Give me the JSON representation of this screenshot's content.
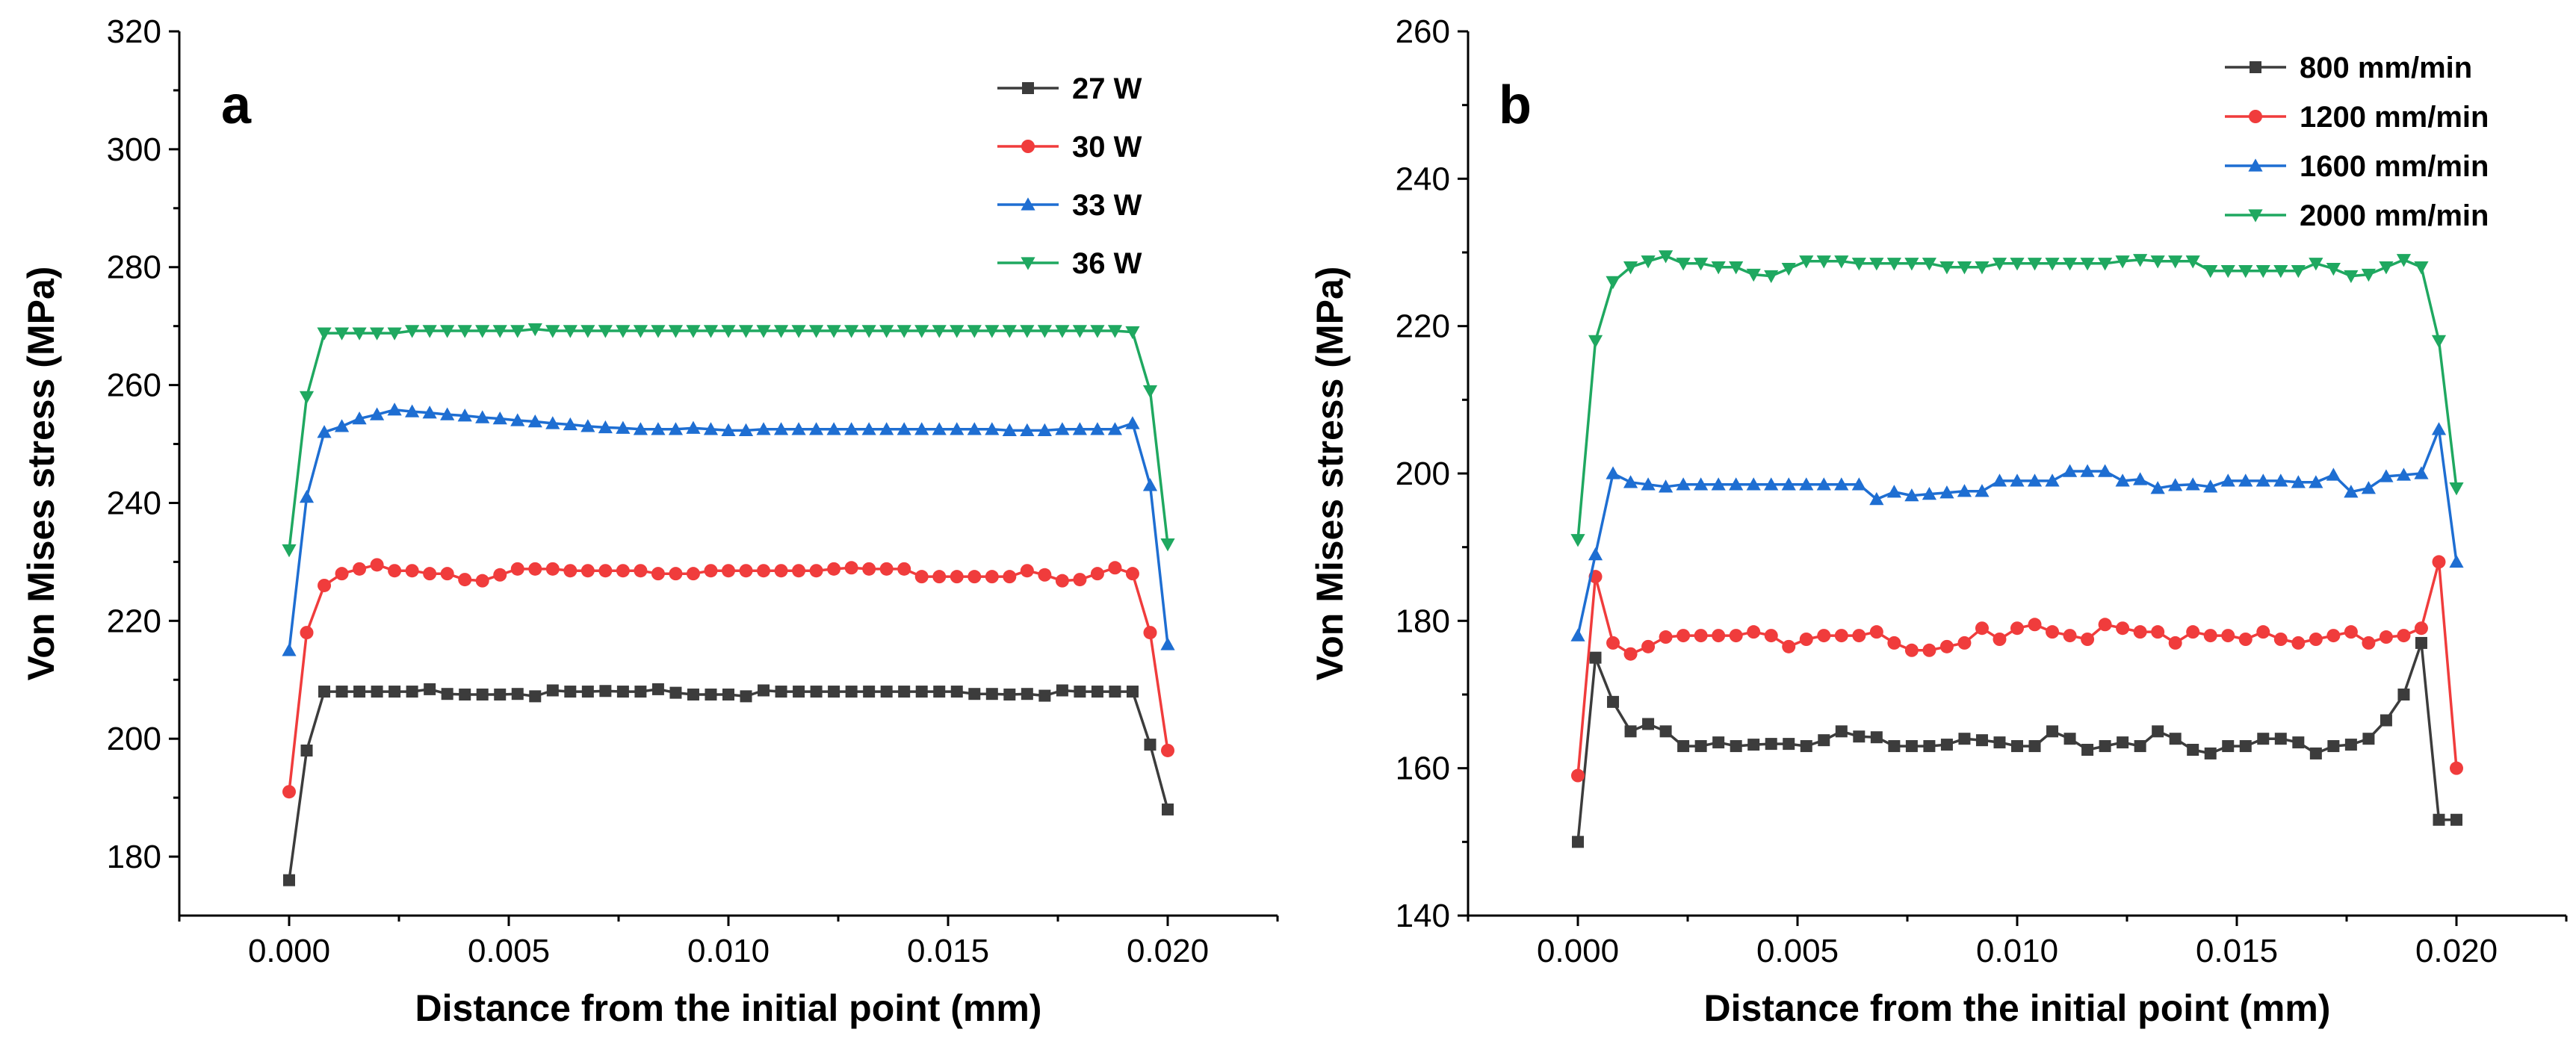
{
  "chart_data": [
    {
      "type": "line",
      "panel_label": "a",
      "xlabel": "Distance from the initial point (mm)",
      "ylabel": "Von Mises stress (MPa)",
      "xlim": [
        -0.0025,
        0.0225
      ],
      "ylim": [
        170,
        320
      ],
      "xticks": [
        "0.000",
        "0.005",
        "0.010",
        "0.015",
        "0.020"
      ],
      "yticks": [
        "180",
        "200",
        "220",
        "240",
        "260",
        "280",
        "300",
        "320"
      ],
      "legend_position": "top-right",
      "series": [
        {
          "name": "27 W",
          "color": "#3c3c3c",
          "marker": "square",
          "x": [
            0,
            0.0004,
            0.0008,
            0.0012,
            0.0016,
            0.002,
            0.0024,
            0.0028,
            0.0032,
            0.0036,
            0.004,
            0.0044,
            0.0048,
            0.0052,
            0.0056,
            0.006,
            0.0064,
            0.0068,
            0.0072,
            0.0076,
            0.008,
            0.0084,
            0.0088,
            0.0092,
            0.0096,
            0.01,
            0.0104,
            0.0108,
            0.0112,
            0.0116,
            0.012,
            0.0124,
            0.0128,
            0.0132,
            0.0136,
            0.014,
            0.0144,
            0.0148,
            0.0152,
            0.0156,
            0.016,
            0.0164,
            0.0168,
            0.0172,
            0.0176,
            0.018,
            0.0184,
            0.0188,
            0.0192,
            0.0196,
            0.02
          ],
          "y": [
            176,
            198,
            208,
            208,
            208,
            208,
            208,
            208,
            208.4,
            207.6,
            207.5,
            207.5,
            207.5,
            207.6,
            207.2,
            208.2,
            208,
            208,
            208.1,
            208,
            208,
            208.4,
            207.8,
            207.5,
            207.5,
            207.5,
            207.2,
            208.2,
            208,
            208,
            208,
            208,
            208,
            208,
            208,
            208,
            208,
            208,
            208,
            207.6,
            207.6,
            207.5,
            207.6,
            207.3,
            208.2,
            208,
            208,
            208,
            208,
            199,
            188
          ]
        },
        {
          "name": "30 W",
          "color": "#f03c3c",
          "marker": "circle",
          "x": [
            0,
            0.0004,
            0.0008,
            0.0012,
            0.0016,
            0.002,
            0.0024,
            0.0028,
            0.0032,
            0.0036,
            0.004,
            0.0044,
            0.0048,
            0.0052,
            0.0056,
            0.006,
            0.0064,
            0.0068,
            0.0072,
            0.0076,
            0.008,
            0.0084,
            0.0088,
            0.0092,
            0.0096,
            0.01,
            0.0104,
            0.0108,
            0.0112,
            0.0116,
            0.012,
            0.0124,
            0.0128,
            0.0132,
            0.0136,
            0.014,
            0.0144,
            0.0148,
            0.0152,
            0.0156,
            0.016,
            0.0164,
            0.0168,
            0.0172,
            0.0176,
            0.018,
            0.0184,
            0.0188,
            0.0192,
            0.0196,
            0.02
          ],
          "y": [
            191,
            218,
            226,
            228,
            228.8,
            229.5,
            228.5,
            228.5,
            228,
            228,
            227,
            226.8,
            227.8,
            228.8,
            228.8,
            228.8,
            228.5,
            228.5,
            228.5,
            228.5,
            228.5,
            228,
            228,
            228,
            228.5,
            228.5,
            228.5,
            228.5,
            228.5,
            228.5,
            228.5,
            228.8,
            229,
            228.8,
            228.8,
            228.8,
            227.5,
            227.5,
            227.5,
            227.5,
            227.5,
            227.5,
            228.5,
            227.8,
            226.8,
            227,
            228,
            229,
            228,
            218,
            198
          ]
        },
        {
          "name": "33 W",
          "color": "#1e6ed2",
          "marker": "triangle-up",
          "x": [
            0,
            0.0004,
            0.0008,
            0.0012,
            0.0016,
            0.002,
            0.0024,
            0.0028,
            0.0032,
            0.0036,
            0.004,
            0.0044,
            0.0048,
            0.0052,
            0.0056,
            0.006,
            0.0064,
            0.0068,
            0.0072,
            0.0076,
            0.008,
            0.0084,
            0.0088,
            0.0092,
            0.0096,
            0.01,
            0.0104,
            0.0108,
            0.0112,
            0.0116,
            0.012,
            0.0124,
            0.0128,
            0.0132,
            0.0136,
            0.014,
            0.0144,
            0.0148,
            0.0152,
            0.0156,
            0.016,
            0.0164,
            0.0168,
            0.0172,
            0.0176,
            0.018,
            0.0184,
            0.0188,
            0.0192,
            0.0196,
            0.02
          ],
          "y": [
            215,
            241,
            252,
            253,
            254.3,
            255,
            255.8,
            255.5,
            255.3,
            255,
            254.8,
            254.5,
            254.3,
            254,
            253.8,
            253.5,
            253.3,
            253,
            252.8,
            252.7,
            252.5,
            252.5,
            252.5,
            252.7,
            252.5,
            252.3,
            252.3,
            252.5,
            252.5,
            252.5,
            252.5,
            252.5,
            252.5,
            252.5,
            252.5,
            252.5,
            252.5,
            252.5,
            252.5,
            252.5,
            252.5,
            252.3,
            252.3,
            252.3,
            252.5,
            252.5,
            252.5,
            252.5,
            253.5,
            243,
            216
          ]
        },
        {
          "name": "36 W",
          "color": "#1fa860",
          "marker": "triangle-down",
          "x": [
            0,
            0.0004,
            0.0008,
            0.0012,
            0.0016,
            0.002,
            0.0024,
            0.0028,
            0.0032,
            0.0036,
            0.004,
            0.0044,
            0.0048,
            0.0052,
            0.0056,
            0.006,
            0.0064,
            0.0068,
            0.0072,
            0.0076,
            0.008,
            0.0084,
            0.0088,
            0.0092,
            0.0096,
            0.01,
            0.0104,
            0.0108,
            0.0112,
            0.0116,
            0.012,
            0.0124,
            0.0128,
            0.0132,
            0.0136,
            0.014,
            0.0144,
            0.0148,
            0.0152,
            0.0156,
            0.016,
            0.0164,
            0.0168,
            0.0172,
            0.0176,
            0.018,
            0.0184,
            0.0188,
            0.0192,
            0.0196,
            0.02
          ],
          "y": [
            232,
            258,
            268.8,
            268.8,
            268.8,
            268.8,
            268.8,
            269.2,
            269.2,
            269.2,
            269.2,
            269.2,
            269.2,
            269.2,
            269.5,
            269.2,
            269.2,
            269.2,
            269.2,
            269.2,
            269.2,
            269.2,
            269.2,
            269.2,
            269.2,
            269.2,
            269.2,
            269.2,
            269.2,
            269.2,
            269.2,
            269.2,
            269.2,
            269.2,
            269.2,
            269.2,
            269.2,
            269.2,
            269.2,
            269.2,
            269.2,
            269.2,
            269.2,
            269.2,
            269.2,
            269.2,
            269.2,
            269.2,
            269,
            259,
            233
          ]
        }
      ]
    },
    {
      "type": "line",
      "panel_label": "b",
      "xlabel": "Distance from the initial point (mm)",
      "ylabel": "Von Mises stress (MPa)",
      "xlim": [
        -0.0025,
        0.0225
      ],
      "ylim": [
        140,
        260
      ],
      "xticks": [
        "0.000",
        "0.005",
        "0.010",
        "0.015",
        "0.020"
      ],
      "yticks": [
        "140",
        "160",
        "180",
        "200",
        "220",
        "240",
        "260"
      ],
      "legend_position": "top-right",
      "series": [
        {
          "name": "800 mm/min",
          "color": "#3c3c3c",
          "marker": "square",
          "x": [
            0,
            0.0004,
            0.0008,
            0.0012,
            0.0016,
            0.002,
            0.0024,
            0.0028,
            0.0032,
            0.0036,
            0.004,
            0.0044,
            0.0048,
            0.0052,
            0.0056,
            0.006,
            0.0064,
            0.0068,
            0.0072,
            0.0076,
            0.008,
            0.0084,
            0.0088,
            0.0092,
            0.0096,
            0.01,
            0.0104,
            0.0108,
            0.0112,
            0.0116,
            0.012,
            0.0124,
            0.0128,
            0.0132,
            0.0136,
            0.014,
            0.0144,
            0.0148,
            0.0152,
            0.0156,
            0.016,
            0.0164,
            0.0168,
            0.0172,
            0.0176,
            0.018,
            0.0184,
            0.0188,
            0.0192,
            0.0196,
            0.02
          ],
          "y": [
            150,
            175,
            169,
            165,
            166,
            165,
            163,
            163,
            163.5,
            163,
            163.2,
            163.3,
            163.3,
            163,
            163.8,
            165,
            164.3,
            164.2,
            163,
            163,
            163,
            163.2,
            164,
            163.8,
            163.5,
            163,
            163,
            165,
            164,
            162.5,
            163,
            163.5,
            163,
            165,
            164,
            162.5,
            162,
            163,
            163,
            164,
            164,
            163.5,
            162,
            163,
            163.2,
            164,
            166.5,
            170,
            177,
            153,
            153
          ]
        },
        {
          "name": "1200 mm/min",
          "color": "#f03c3c",
          "marker": "circle",
          "x": [
            0,
            0.0004,
            0.0008,
            0.0012,
            0.0016,
            0.002,
            0.0024,
            0.0028,
            0.0032,
            0.0036,
            0.004,
            0.0044,
            0.0048,
            0.0052,
            0.0056,
            0.006,
            0.0064,
            0.0068,
            0.0072,
            0.0076,
            0.008,
            0.0084,
            0.0088,
            0.0092,
            0.0096,
            0.01,
            0.0104,
            0.0108,
            0.0112,
            0.0116,
            0.012,
            0.0124,
            0.0128,
            0.0132,
            0.0136,
            0.014,
            0.0144,
            0.0148,
            0.0152,
            0.0156,
            0.016,
            0.0164,
            0.0168,
            0.0172,
            0.0176,
            0.018,
            0.0184,
            0.0188,
            0.0192,
            0.0196,
            0.02
          ],
          "y": [
            159,
            186,
            177,
            175.5,
            176.5,
            177.8,
            178,
            178,
            178,
            178,
            178.5,
            178,
            176.5,
            177.5,
            178,
            178,
            178,
            178.5,
            177,
            176,
            176,
            176.5,
            177,
            179,
            177.5,
            179,
            179.5,
            178.5,
            178,
            177.5,
            179.5,
            179,
            178.5,
            178.5,
            177,
            178.5,
            178,
            178,
            177.5,
            178.5,
            177.5,
            177,
            177.5,
            178,
            178.5,
            177,
            177.8,
            178,
            179,
            188,
            160
          ]
        },
        {
          "name": "1600 mm/min",
          "color": "#1e6ed2",
          "marker": "triangle-up",
          "x": [
            0,
            0.0004,
            0.0008,
            0.0012,
            0.0016,
            0.002,
            0.0024,
            0.0028,
            0.0032,
            0.0036,
            0.004,
            0.0044,
            0.0048,
            0.0052,
            0.0056,
            0.006,
            0.0064,
            0.0068,
            0.0072,
            0.0076,
            0.008,
            0.0084,
            0.0088,
            0.0092,
            0.0096,
            0.01,
            0.0104,
            0.0108,
            0.0112,
            0.0116,
            0.012,
            0.0124,
            0.0128,
            0.0132,
            0.0136,
            0.014,
            0.0144,
            0.0148,
            0.0152,
            0.0156,
            0.016,
            0.0164,
            0.0168,
            0.0172,
            0.0176,
            0.018,
            0.0184,
            0.0188,
            0.0192,
            0.0196,
            0.02
          ],
          "y": [
            178,
            189,
            200,
            198.8,
            198.5,
            198.2,
            198.5,
            198.5,
            198.5,
            198.5,
            198.5,
            198.5,
            198.5,
            198.5,
            198.5,
            198.5,
            198.5,
            196.5,
            197.5,
            197,
            197.2,
            197.4,
            197.6,
            197.6,
            199,
            199,
            199,
            199,
            200.3,
            200.3,
            200.3,
            199,
            199.2,
            198,
            198.4,
            198.5,
            198.2,
            199,
            199,
            199,
            199,
            198.8,
            198.8,
            199.8,
            197.5,
            198,
            199.6,
            199.8,
            200,
            206,
            188
          ]
        },
        {
          "name": "2000 mm/min",
          "color": "#1fa860",
          "marker": "triangle-down",
          "x": [
            0,
            0.0004,
            0.0008,
            0.0012,
            0.0016,
            0.002,
            0.0024,
            0.0028,
            0.0032,
            0.0036,
            0.004,
            0.0044,
            0.0048,
            0.0052,
            0.0056,
            0.006,
            0.0064,
            0.0068,
            0.0072,
            0.0076,
            0.008,
            0.0084,
            0.0088,
            0.0092,
            0.0096,
            0.01,
            0.0104,
            0.0108,
            0.0112,
            0.0116,
            0.012,
            0.0124,
            0.0128,
            0.0132,
            0.0136,
            0.014,
            0.0144,
            0.0148,
            0.0152,
            0.0156,
            0.016,
            0.0164,
            0.0168,
            0.0172,
            0.0176,
            0.018,
            0.0184,
            0.0188,
            0.0192,
            0.0196,
            0.02
          ],
          "y": [
            191,
            218,
            226,
            228,
            228.8,
            229.5,
            228.5,
            228.5,
            228,
            228,
            227,
            226.8,
            227.8,
            228.8,
            228.8,
            228.8,
            228.5,
            228.5,
            228.5,
            228.5,
            228.5,
            228,
            228,
            228,
            228.5,
            228.5,
            228.5,
            228.5,
            228.5,
            228.5,
            228.5,
            228.8,
            229,
            228.8,
            228.8,
            228.8,
            227.5,
            227.5,
            227.5,
            227.5,
            227.5,
            227.5,
            228.5,
            227.8,
            226.8,
            227,
            228,
            229,
            228,
            218,
            198
          ]
        }
      ]
    }
  ]
}
